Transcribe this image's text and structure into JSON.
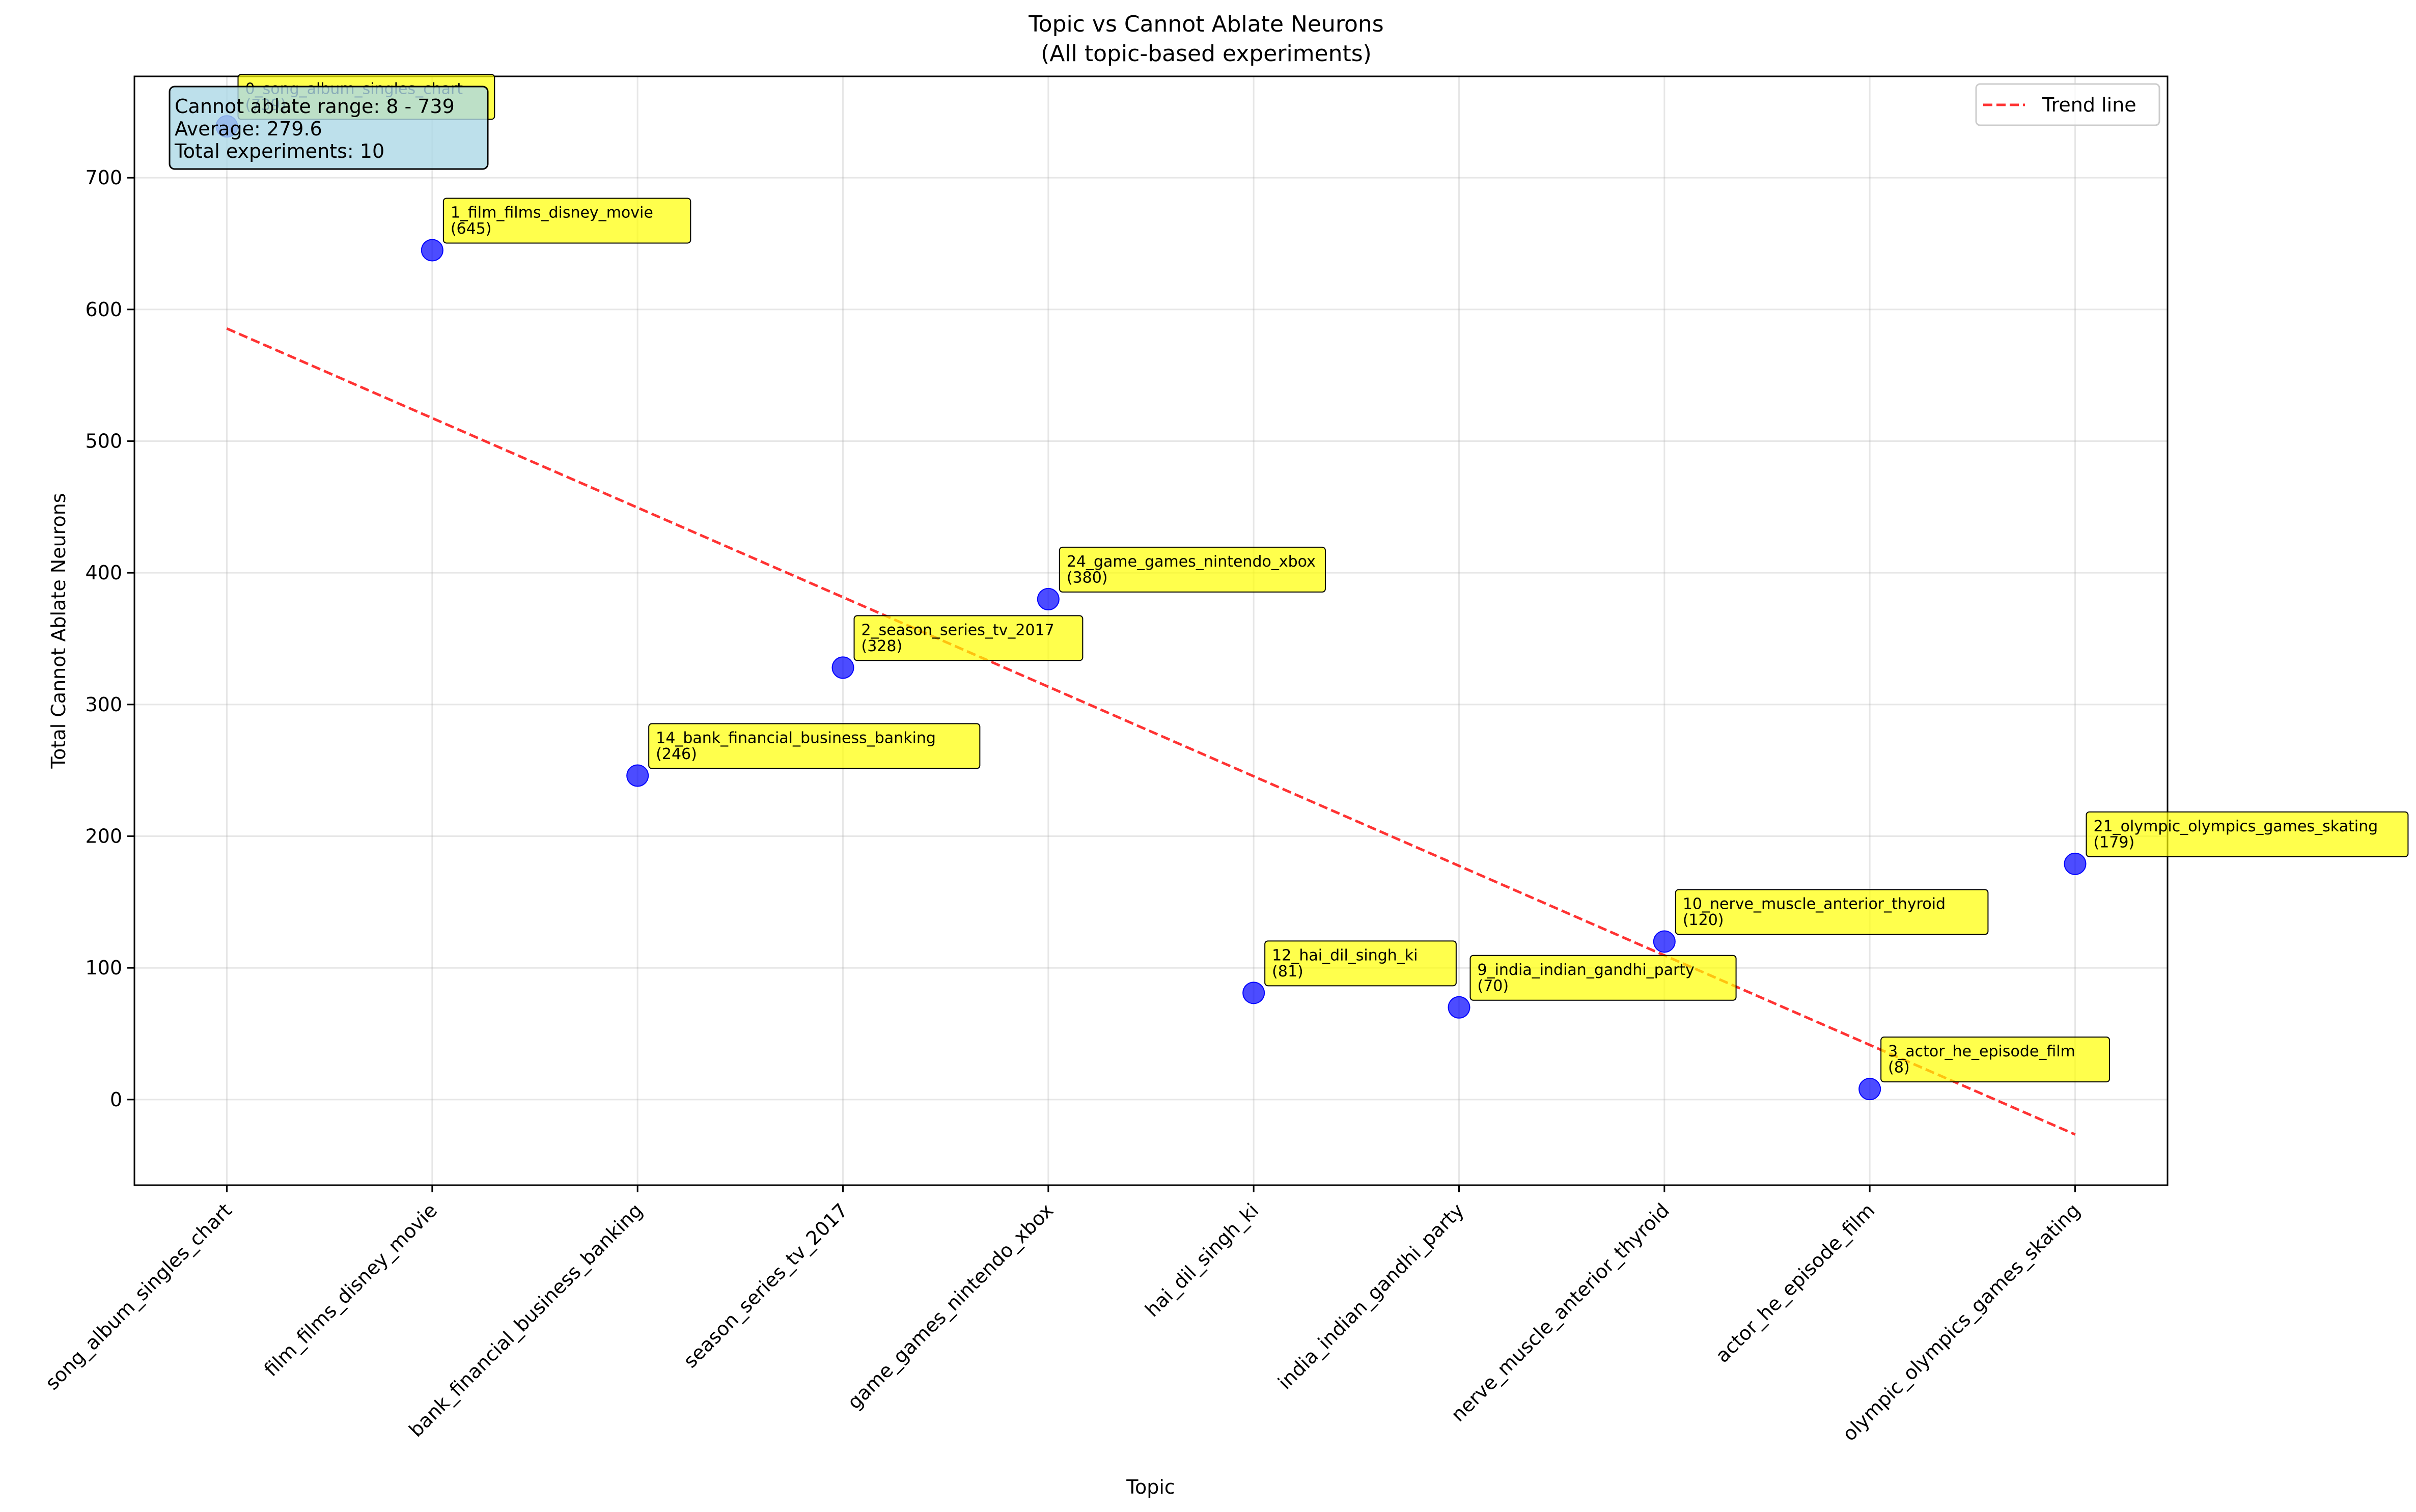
{
  "chart_data": {
    "type": "scatter",
    "title": "Topic vs Cannot Ablate Neurons",
    "subtitle": "(All topic-based experiments)",
    "xlabel": "Topic",
    "ylabel": "Total Cannot Ablate Neurons",
    "categories": [
      "song_album_singles_chart",
      "film_films_disney_movie",
      "bank_financial_business_banking",
      "season_series_tv_2017",
      "game_games_nintendo_xbox",
      "hai_dil_singh_ki",
      "india_indian_gandhi_party",
      "nerve_muscle_anterior_thyroid",
      "actor_he_episode_film",
      "olympic_olympics_games_skating"
    ],
    "values": [
      739,
      645,
      246,
      328,
      380,
      81,
      70,
      120,
      8,
      179
    ],
    "point_labels": [
      "0_song_album_singles_chart",
      "1_film_films_disney_movie",
      "14_bank_financial_business_banking",
      "2_season_series_tv_2017",
      "24_game_games_nintendo_xbox",
      "12_hai_dil_singh_ki",
      "9_india_indian_gandhi_party",
      "10_nerve_muscle_anterior_thyroid",
      "3_actor_he_episode_film",
      "21_olympic_olympics_games_skating"
    ],
    "value_labels": [
      "(739)",
      "(645)",
      "(246)",
      "(328)",
      "(380)",
      "(81)",
      "(70)",
      "(120)",
      "(8)",
      "(179)"
    ],
    "yticks": [
      0,
      100,
      200,
      300,
      400,
      500,
      600,
      700
    ],
    "ylim": [
      -65,
      777
    ],
    "xlim": [
      -0.45,
      9.45
    ],
    "trend_line": {
      "name": "Trend line",
      "y_start": 585.5,
      "y_end": -26.5
    },
    "legend": {
      "label": "Trend line",
      "placement": "top-right"
    },
    "stats_box": [
      "Cannot ablate range: 8 - 739",
      "Average: 279.6",
      "Total experiments: 10"
    ],
    "grid": true,
    "colors": {
      "points": "#0000ff",
      "trend": "#ff0000",
      "annotation_fill": "#ffff00",
      "stats_fill": "#add8e6"
    }
  }
}
